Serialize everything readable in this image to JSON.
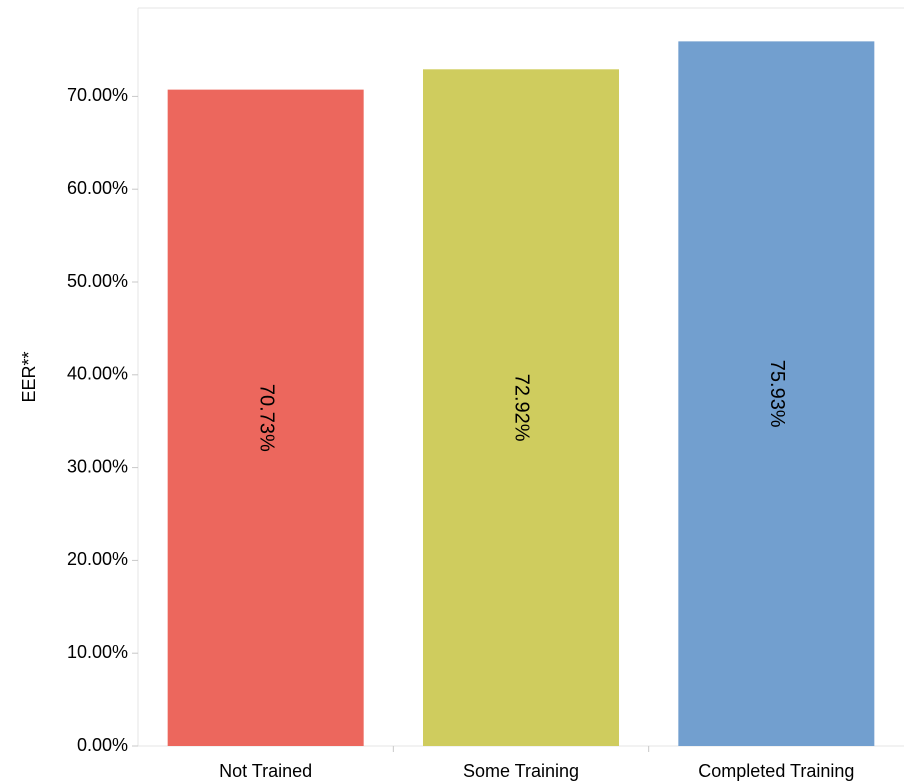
{
  "chart_data": {
    "type": "bar",
    "ylabel": "EER**",
    "categories": [
      "Not Trained",
      "Some Training",
      "Completed Training"
    ],
    "values": [
      70.73,
      72.92,
      75.93
    ],
    "value_labels": [
      "70.73%",
      "72.92%",
      "75.93%"
    ],
    "colors": [
      "#ec675d",
      "#cfcc5e",
      "#729fcf"
    ],
    "yticks": [
      0,
      10,
      20,
      30,
      40,
      50,
      60,
      70
    ],
    "ytick_labels": [
      "0.00%",
      "10.00%",
      "20.00%",
      "30.00%",
      "40.00%",
      "50.00%",
      "60.00%",
      "70.00%"
    ],
    "ylim": [
      0,
      75.93
    ],
    "grid": false,
    "legend": "none"
  }
}
